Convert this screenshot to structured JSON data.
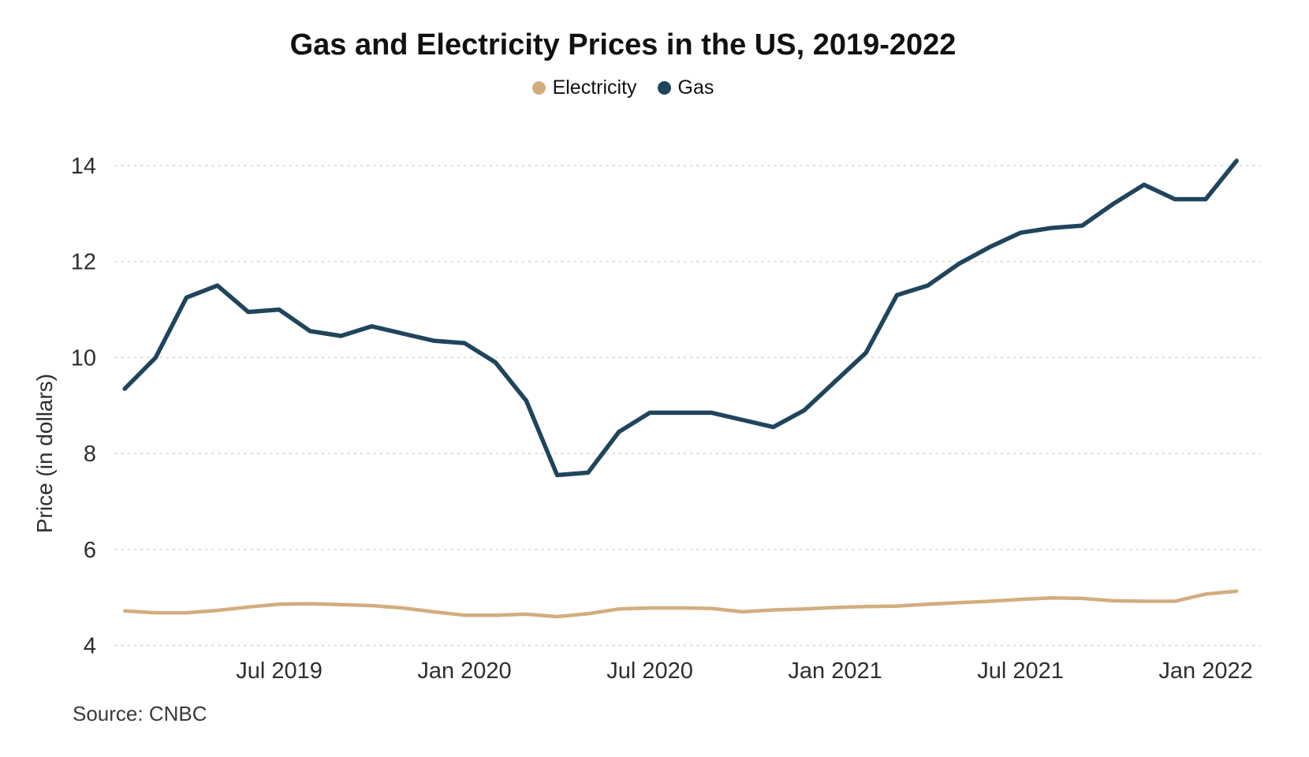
{
  "chart_data": {
    "type": "line",
    "title": "Gas and Electricity Prices in the US, 2019-2022",
    "ylabel": "Price (in dollars)",
    "xlabel": "",
    "source": "Source: CNBC",
    "legend_position": "top-center",
    "grid": "horizontal-dotted",
    "ylim": [
      4,
      14.8
    ],
    "yticks": [
      4,
      6,
      8,
      10,
      12,
      14
    ],
    "xticks": [
      {
        "label": "Jul 2019",
        "index": 5
      },
      {
        "label": "Jan 2020",
        "index": 11
      },
      {
        "label": "Jul 2020",
        "index": 17
      },
      {
        "label": "Jan 2021",
        "index": 23
      },
      {
        "label": "Jul 2021",
        "index": 29
      },
      {
        "label": "Jan 2022",
        "index": 35
      }
    ],
    "x": [
      "Feb 2019",
      "Mar 2019",
      "Apr 2019",
      "May 2019",
      "Jun 2019",
      "Jul 2019",
      "Aug 2019",
      "Sep 2019",
      "Oct 2019",
      "Nov 2019",
      "Dec 2019",
      "Jan 2020",
      "Feb 2020",
      "Mar 2020",
      "Apr 2020",
      "May 2020",
      "Jun 2020",
      "Jul 2020",
      "Aug 2020",
      "Sep 2020",
      "Oct 2020",
      "Nov 2020",
      "Dec 2020",
      "Jan 2021",
      "Feb 2021",
      "Mar 2021",
      "Apr 2021",
      "May 2021",
      "Jun 2021",
      "Jul 2021",
      "Aug 2021",
      "Sep 2021",
      "Oct 2021",
      "Nov 2021",
      "Dec 2021",
      "Jan 2022",
      "Feb 2022"
    ],
    "series": [
      {
        "name": "Electricity",
        "color": "#D2AD7F",
        "values": [
          4.72,
          4.68,
          4.68,
          4.73,
          4.8,
          4.86,
          4.87,
          4.85,
          4.83,
          4.78,
          4.7,
          4.63,
          4.63,
          4.65,
          4.6,
          4.66,
          4.76,
          4.78,
          4.78,
          4.77,
          4.7,
          4.74,
          4.76,
          4.79,
          4.81,
          4.82,
          4.86,
          4.89,
          4.92,
          4.96,
          4.99,
          4.98,
          4.93,
          4.92,
          4.92,
          5.07,
          5.13
        ]
      },
      {
        "name": "Gas",
        "color": "#1F455C",
        "values": [
          9.35,
          10.0,
          11.25,
          11.5,
          10.95,
          11.0,
          10.55,
          10.45,
          10.65,
          10.5,
          10.35,
          10.3,
          9.9,
          9.1,
          7.55,
          7.6,
          8.45,
          8.85,
          8.85,
          8.85,
          8.7,
          8.55,
          8.9,
          9.5,
          10.1,
          11.3,
          11.5,
          11.95,
          12.3,
          12.6,
          12.7,
          12.75,
          13.2,
          13.6,
          13.3,
          13.3,
          14.1
        ]
      }
    ],
    "colors": {
      "gridline": "#D8D8D8",
      "tick_text": "#2E2E2E",
      "title_text": "#111111",
      "source_text": "#3A3A3A"
    }
  }
}
